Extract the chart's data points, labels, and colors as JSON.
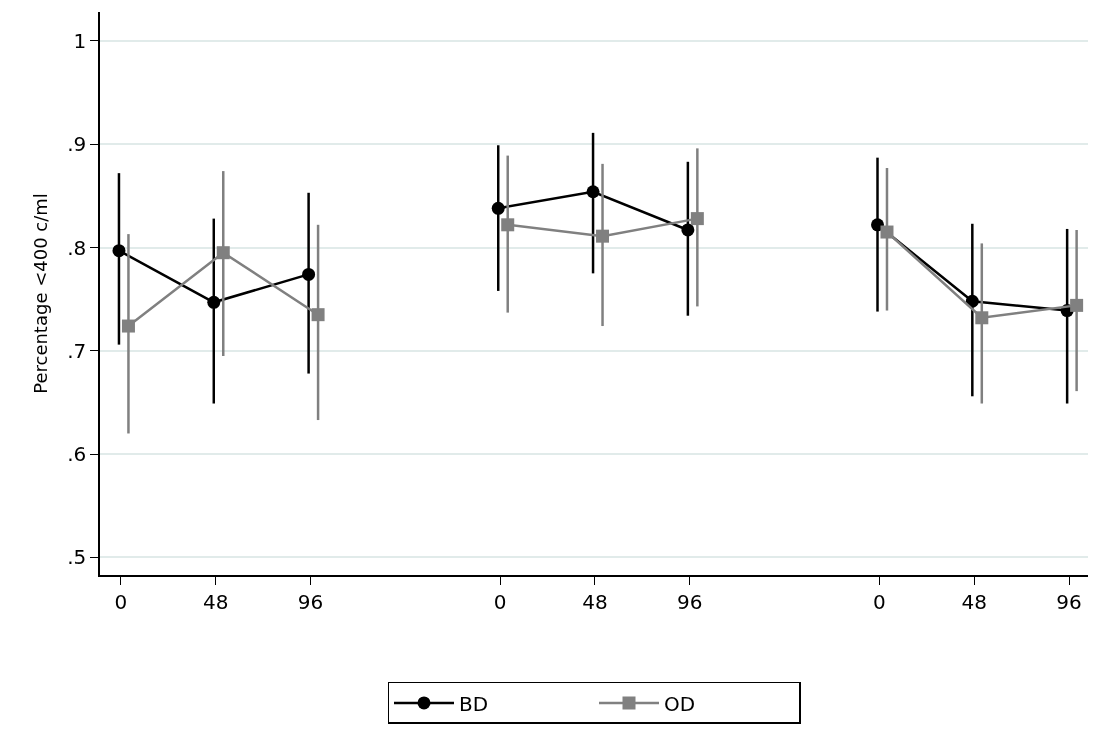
{
  "chart_data": {
    "type": "line",
    "ylabel": "Percentage <400 c/ml",
    "ylim": [
      0.483,
      1.028
    ],
    "categories": [
      "0",
      "48",
      "96",
      null,
      "0",
      "48",
      "96",
      null,
      "0",
      "48",
      "96"
    ],
    "yticks": [
      {
        "value": 0.5,
        "label": ".5"
      },
      {
        "value": 0.6,
        "label": ".6"
      },
      {
        "value": 0.7,
        "label": ".7"
      },
      {
        "value": 0.8,
        "label": ".8"
      },
      {
        "value": 0.9,
        "label": ".9"
      },
      {
        "value": 1,
        "label": "1"
      }
    ],
    "grid": "y",
    "legend": "bottom",
    "series": [
      {
        "name": "BD",
        "color": "#000000",
        "marker": "circle",
        "values": [
          0.797,
          0.747,
          0.774,
          null,
          0.838,
          0.854,
          0.817,
          null,
          0.822,
          0.748,
          0.739
        ],
        "errors": [
          [
            0.706,
            0.872
          ],
          [
            0.649,
            0.828
          ],
          [
            0.678,
            0.853
          ],
          null,
          [
            0.758,
            0.899
          ],
          [
            0.775,
            0.911
          ],
          [
            0.734,
            0.883
          ],
          null,
          [
            0.738,
            0.887
          ],
          [
            0.656,
            0.823
          ],
          [
            0.649,
            0.818
          ]
        ]
      },
      {
        "name": "OD",
        "color": "#808080",
        "marker": "square",
        "values": [
          0.724,
          0.795,
          0.735,
          null,
          0.822,
          0.811,
          0.828,
          null,
          0.815,
          0.732,
          0.744
        ],
        "errors": [
          [
            0.62,
            0.813
          ],
          [
            0.695,
            0.874
          ],
          [
            0.633,
            0.822
          ],
          null,
          [
            0.737,
            0.889
          ],
          [
            0.724,
            0.881
          ],
          [
            0.743,
            0.896
          ],
          null,
          [
            0.739,
            0.877
          ],
          [
            0.649,
            0.804
          ],
          [
            0.661,
            0.817
          ]
        ]
      }
    ]
  }
}
